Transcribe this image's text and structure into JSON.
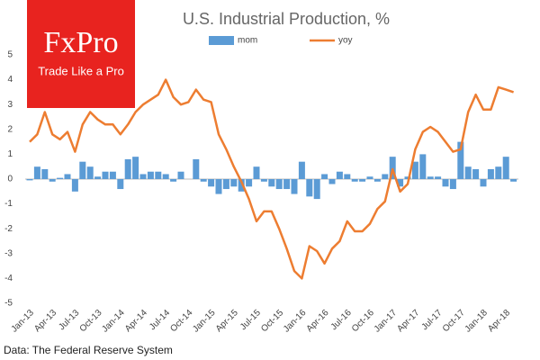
{
  "chart_data": {
    "type": "bar_line",
    "title": "U.S. Industrial Production, %",
    "logo": {
      "brand": "FxPro",
      "tagline": "Trade Like a Pro"
    },
    "source": "Data: The Federal Reserve System",
    "categories": [
      "Jan-13",
      null,
      null,
      "Apr-13",
      null,
      null,
      "Jul-13",
      null,
      null,
      "Oct-13",
      null,
      null,
      "Jan-14",
      null,
      null,
      "Apr-14",
      null,
      null,
      "Jul-14",
      null,
      null,
      "Oct-14",
      null,
      null,
      "Jan-15",
      null,
      null,
      "Apr-15",
      null,
      null,
      "Jul-15",
      null,
      null,
      "Oct-15",
      null,
      null,
      "Jan-16",
      null,
      null,
      "Apr-16",
      null,
      null,
      "Jul-16",
      null,
      null,
      "Oct-16",
      null,
      null,
      "Jan-17",
      null,
      null,
      "Apr-17",
      null,
      null,
      "Jul-17",
      null,
      null,
      "Oct-17",
      null,
      null,
      "Jan-18",
      null,
      null,
      "Apr-18",
      null
    ],
    "series": [
      {
        "name": "mom",
        "type": "bar",
        "color": "#5b9bd5",
        "values": [
          -0.05,
          0.5,
          0.4,
          -0.1,
          0.05,
          0.2,
          -0.5,
          0.7,
          0.5,
          0.1,
          0.3,
          0.3,
          -0.4,
          0.8,
          0.9,
          0.2,
          0.3,
          0.3,
          0.2,
          -0.1,
          0.3,
          0.0,
          0.8,
          -0.1,
          -0.3,
          -0.6,
          -0.4,
          -0.3,
          -0.5,
          -0.3,
          0.5,
          -0.1,
          -0.3,
          -0.4,
          -0.4,
          -0.6,
          0.7,
          -0.7,
          -0.8,
          0.2,
          -0.2,
          0.3,
          0.2,
          -0.1,
          -0.1,
          0.1,
          -0.1,
          0.2,
          0.9,
          -0.3,
          0.1,
          0.7,
          1.0,
          0.1,
          0.1,
          -0.3,
          -0.4,
          1.5,
          0.5,
          0.4,
          -0.3,
          0.4,
          0.5,
          0.9,
          -0.1
        ]
      },
      {
        "name": "yoy",
        "type": "line",
        "color": "#ed7d31",
        "values": [
          1.5,
          1.8,
          2.7,
          1.8,
          1.6,
          1.9,
          1.1,
          2.2,
          2.7,
          2.4,
          2.2,
          2.2,
          1.8,
          2.2,
          2.7,
          3.0,
          3.2,
          3.4,
          4.0,
          3.3,
          3.0,
          3.1,
          3.6,
          3.2,
          3.1,
          1.8,
          1.2,
          0.5,
          -0.1,
          -0.8,
          -1.7,
          -1.3,
          -1.3,
          -2.0,
          -2.8,
          -3.7,
          -4.0,
          -2.7,
          -2.9,
          -3.4,
          -2.8,
          -2.5,
          -1.7,
          -2.1,
          -2.1,
          -1.8,
          -1.2,
          -0.9,
          0.4,
          -0.5,
          -0.2,
          1.2,
          1.9,
          2.1,
          1.9,
          1.5,
          1.1,
          1.2,
          2.7,
          3.4,
          2.8,
          2.8,
          3.7,
          3.6,
          3.5
        ]
      }
    ],
    "ylim": [
      -5,
      5
    ],
    "yticks": [
      -5,
      -4,
      -3,
      -2,
      -1,
      0,
      1,
      2,
      3,
      4,
      5
    ],
    "grid": false
  }
}
